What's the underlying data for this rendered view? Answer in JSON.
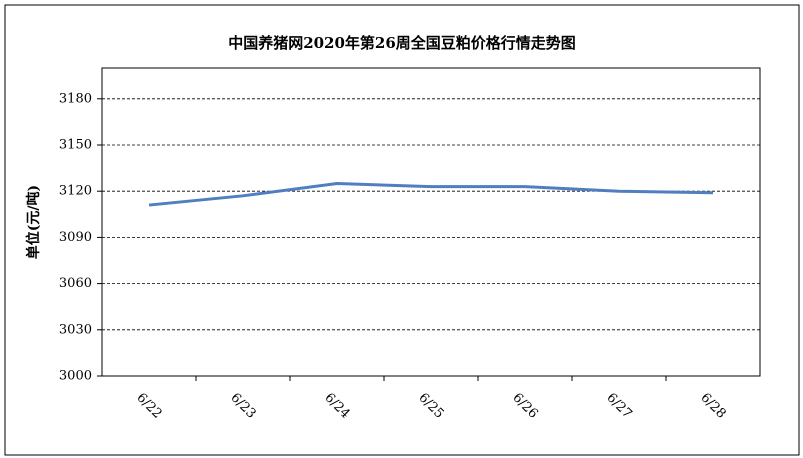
{
  "chart_data": {
    "type": "line",
    "title": "中国养猪网2020年第26周全国豆粕价格行情走势图",
    "y_label": "单位(元/吨)",
    "categories": [
      "6/22",
      "6/23",
      "6/24",
      "6/25",
      "6/26",
      "6/27",
      "6/28"
    ],
    "series": [
      {
        "name": "豆粕价格",
        "color": "#4f7fc0",
        "values": [
          3111,
          3117,
          3125,
          3123,
          3123,
          3120,
          3119
        ]
      }
    ],
    "ylim": [
      3000,
      3200
    ],
    "yticks": [
      3000,
      3030,
      3060,
      3090,
      3120,
      3150,
      3180
    ],
    "grid": true
  }
}
